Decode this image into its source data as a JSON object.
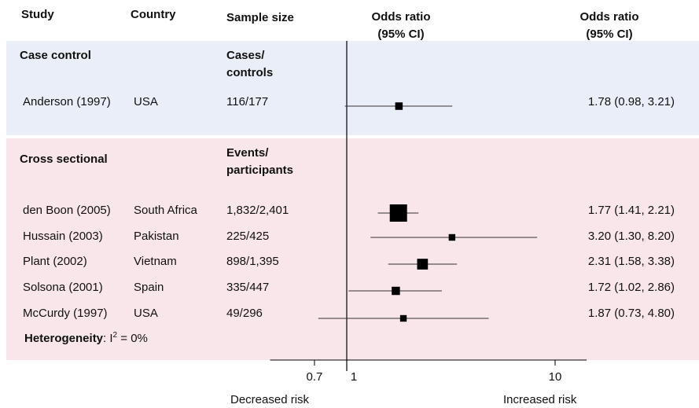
{
  "headers": {
    "study": "Study",
    "country": "Country",
    "sample_size": "Sample size",
    "or_left": "Odds ratio",
    "ci_left": "(95% CI)",
    "or_right": "Odds ratio",
    "ci_right": "(95% CI)"
  },
  "sections": {
    "case_control": {
      "title": "Case control",
      "sample_label_1": "Cases/",
      "sample_label_2": "controls"
    },
    "cross_sectional": {
      "title": "Cross sectional",
      "sample_label_1": "Events/",
      "sample_label_2": "participants"
    }
  },
  "heterogeneity": {
    "label": "Heterogeneity",
    "sep": ":",
    "stat": "I",
    "sup": "2",
    "value": " = 0%"
  },
  "axis": {
    "decreased": "Decreased risk",
    "increased": "Increased risk"
  },
  "colors": {
    "case_band": "#e9eef8",
    "cross_band": "#f9e6ea",
    "marker": "#000000"
  },
  "chart_data": {
    "type": "forest",
    "xscale": "log",
    "xlim": [
      0.4,
      16
    ],
    "ticks": [
      {
        "value": 0.7,
        "label": "0.7"
      },
      {
        "value": 1,
        "label": "1"
      },
      {
        "value": 10,
        "label": "10"
      }
    ],
    "reference_line": 1,
    "rows": [
      {
        "group": "Case control",
        "study": "Anderson (1997)",
        "country": "USA",
        "sample": "116/177",
        "or": 1.78,
        "lo": 0.98,
        "hi": 3.21,
        "ci_text": "1.78 (0.98, 3.21)",
        "weight": 0.22
      },
      {
        "group": "Cross sectional",
        "study": "den Boon (2005)",
        "country": "South Africa",
        "sample": "1,832/2,401",
        "or": 1.77,
        "lo": 1.41,
        "hi": 2.21,
        "ci_text": "1.77 (1.41, 2.21)",
        "weight": 1.0
      },
      {
        "group": "Cross sectional",
        "study": "Hussain (2003)",
        "country": "Pakistan",
        "sample": "225/425",
        "or": 3.2,
        "lo": 1.3,
        "hi": 8.2,
        "ci_text": "3.20 (1.30, 8.20)",
        "weight": 0.15
      },
      {
        "group": "Cross sectional",
        "study": "Plant (2002)",
        "country": "Vietnam",
        "sample": "898/1,395",
        "or": 2.31,
        "lo": 1.58,
        "hi": 3.38,
        "ci_text": "2.31 (1.58, 3.38)",
        "weight": 0.48
      },
      {
        "group": "Cross sectional",
        "study": "Solsona (2001)",
        "country": "Spain",
        "sample": "335/447",
        "or": 1.72,
        "lo": 1.02,
        "hi": 2.86,
        "ci_text": "1.72 (1.02, 2.86)",
        "weight": 0.28
      },
      {
        "group": "Cross sectional",
        "study": "McCurdy (1997)",
        "country": "USA",
        "sample": "49/296",
        "or": 1.87,
        "lo": 0.73,
        "hi": 4.8,
        "ci_text": "1.87 (0.73, 4.80)",
        "weight": 0.15
      }
    ]
  }
}
